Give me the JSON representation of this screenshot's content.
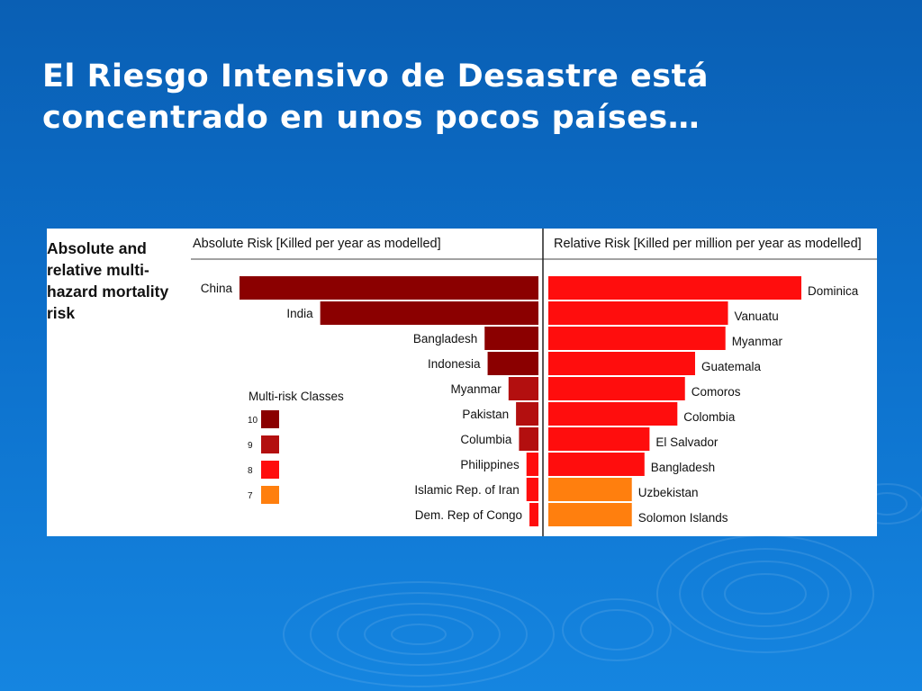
{
  "slide": {
    "title_line1": "El Riesgo Intensivo de Desastre está",
    "title_line2": "concentrado en unos pocos países…"
  },
  "panel": {
    "title_lines": [
      "Absolute and",
      "relative multi-",
      "hazard mortality",
      "risk"
    ]
  },
  "colors": {
    "class10": "#8b0000",
    "class9": "#b30f0f",
    "class8": "#ff0d0d",
    "class7": "#ff7f0e"
  },
  "chart_data": [
    {
      "type": "bar",
      "title": "Absolute Risk [Killed per year as modelled]",
      "orientation": "horizontal",
      "direction": "right-to-left",
      "categories": [
        "China",
        "India",
        "Bangladesh",
        "Indonesia",
        "Myanmar",
        "Pakistan",
        "Columbia",
        "Philippines",
        "Islamic Rep.  of Iran",
        "Dem. Rep  of Congo"
      ],
      "values": [
        100,
        73,
        18,
        17,
        10,
        7.5,
        6.5,
        4,
        4,
        3
      ],
      "unit": "relative bar length (% of longest bar)",
      "risk_class": [
        10,
        10,
        10,
        10,
        9,
        9,
        9,
        8,
        8,
        8
      ]
    },
    {
      "type": "bar",
      "title": "Relative Risk [Killed per million per year as modelled]",
      "orientation": "horizontal",
      "direction": "left-to-right",
      "categories": [
        "Dominica",
        "Vanuatu",
        "Myanmar",
        "Guatemala",
        "Comoros",
        "Colombia",
        "El Salvador",
        "Bangladesh",
        "Uzbekistan",
        "Solomon Islands"
      ],
      "values": [
        100,
        71,
        70,
        58,
        54,
        51,
        40,
        38,
        33,
        33
      ],
      "unit": "relative bar length (% of longest bar)",
      "risk_class": [
        8,
        8,
        8,
        8,
        8,
        8,
        8,
        8,
        7,
        7
      ]
    }
  ],
  "legend": {
    "title": "Multi-risk Classes",
    "items": [
      {
        "label": "10",
        "class": 10
      },
      {
        "label": "9",
        "class": 9
      },
      {
        "label": "8",
        "class": 8
      },
      {
        "label": "7",
        "class": 7
      }
    ]
  }
}
